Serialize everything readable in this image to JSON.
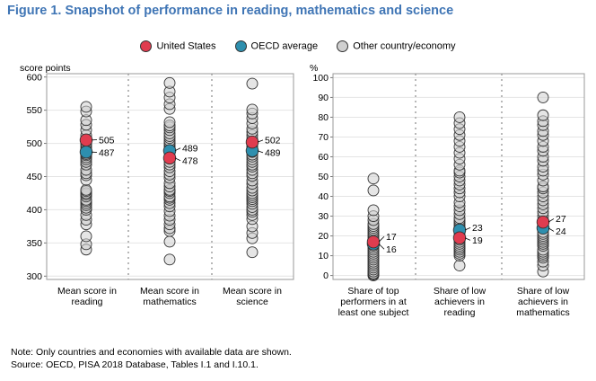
{
  "title": "Figure 1. Snapshot of performance in reading, mathematics and science",
  "legend": [
    {
      "label": "United States",
      "color": "#e03c4f"
    },
    {
      "label": "OECD average",
      "color": "#2e8fae"
    },
    {
      "label": "Other country/economy",
      "color": "#d0d0d0"
    }
  ],
  "note": "Note: Only countries and economies with available data are shown.",
  "source": "Source: OECD, PISA 2018 Database, Tables I.1 and I.10.1.",
  "chart_data": [
    {
      "type": "scatter",
      "ylabel": "score points",
      "ylim": [
        295,
        605
      ],
      "yticks": [
        300,
        350,
        400,
        450,
        500,
        550,
        600
      ],
      "grid": true,
      "categories": [
        "Mean score in reading",
        "Mean score in mathematics",
        "Mean score in science"
      ],
      "series": [
        {
          "name": "Other country/economy",
          "values": [
            [
              340,
              348,
              360,
              378,
              385,
              392,
              400,
              403,
              407,
              410,
              413,
              415,
              420,
              423,
              425,
              428,
              430,
              445,
              452,
              455,
              460,
              468,
              472,
              476,
              479,
              482,
              484,
              487,
              490,
              492,
              495,
              498,
              500,
              503,
              506,
              512,
              520,
              528,
              535,
              548,
              555
            ],
            [
              325,
              352,
              368,
              372,
              378,
              385,
              391,
              398,
              405,
              410,
              415,
              418,
              420,
              425,
              428,
              430,
              435,
              440,
              448,
              453,
              458,
              464,
              468,
              472,
              477,
              481,
              486,
              490,
              494,
              496,
              499,
              501,
              504,
              508,
              511,
              515,
              520,
              524,
              527,
              532,
              552,
              559,
              569,
              578,
              591
            ],
            [
              336,
              357,
              365,
              375,
              386,
              392,
              397,
              400,
              404,
              409,
              413,
              416,
              419,
              422,
              425,
              429,
              433,
              439,
              444,
              451,
              455,
              460,
              465,
              468,
              472,
              476,
              480,
              483,
              487,
              490,
              493,
              495,
              497,
              499,
              503,
              507,
              512,
              517,
              522,
              530,
              538,
              545,
              551,
              590
            ]
          ]
        },
        {
          "name": "OECD average",
          "values": [
            487,
            489,
            489
          ]
        },
        {
          "name": "United States",
          "values": [
            505,
            478,
            502
          ]
        }
      ]
    },
    {
      "type": "scatter",
      "ylabel": "%",
      "ylim": [
        -2,
        102
      ],
      "yticks": [
        0,
        10,
        20,
        30,
        40,
        50,
        60,
        70,
        80,
        90,
        100
      ],
      "grid": true,
      "categories": [
        "Share of top performers in at least one subject",
        "Share of low achievers in reading",
        "Share of low achievers in mathematics"
      ],
      "series": [
        {
          "name": "Other country/economy",
          "values": [
            [
              0,
              0.5,
              1,
              1,
              2,
              2,
              3,
              4,
              5,
              6,
              7,
              8,
              9,
              10,
              11,
              12,
              13,
              14,
              15,
              16,
              18,
              19,
              20,
              21,
              22,
              23,
              24,
              25,
              26,
              28,
              30,
              33,
              43,
              49
            ],
            [
              5,
              10,
              11,
              12,
              13,
              14,
              14,
              15,
              16,
              17,
              18,
              19,
              20,
              21,
              22,
              23,
              24,
              25,
              26,
              27,
              28,
              29,
              31,
              33,
              35,
              37,
              40,
              42,
              44,
              46,
              48,
              50,
              52,
              53,
              56,
              59,
              62,
              65,
              68,
              71,
              74,
              77,
              80
            ],
            [
              2,
              5,
              7,
              9,
              10,
              11,
              12,
              13,
              15,
              16,
              17,
              18,
              19,
              20,
              21,
              22,
              24,
              25,
              26,
              27,
              28,
              30,
              32,
              34,
              36,
              38,
              40,
              42,
              44,
              45,
              48,
              51,
              53,
              55,
              58,
              60,
              63,
              65,
              68,
              71,
              73,
              76,
              78,
              81,
              90
            ]
          ]
        },
        {
          "name": "OECD average",
          "values": [
            16,
            23,
            24
          ]
        },
        {
          "name": "United States",
          "values": [
            17,
            19,
            27
          ]
        }
      ]
    }
  ]
}
